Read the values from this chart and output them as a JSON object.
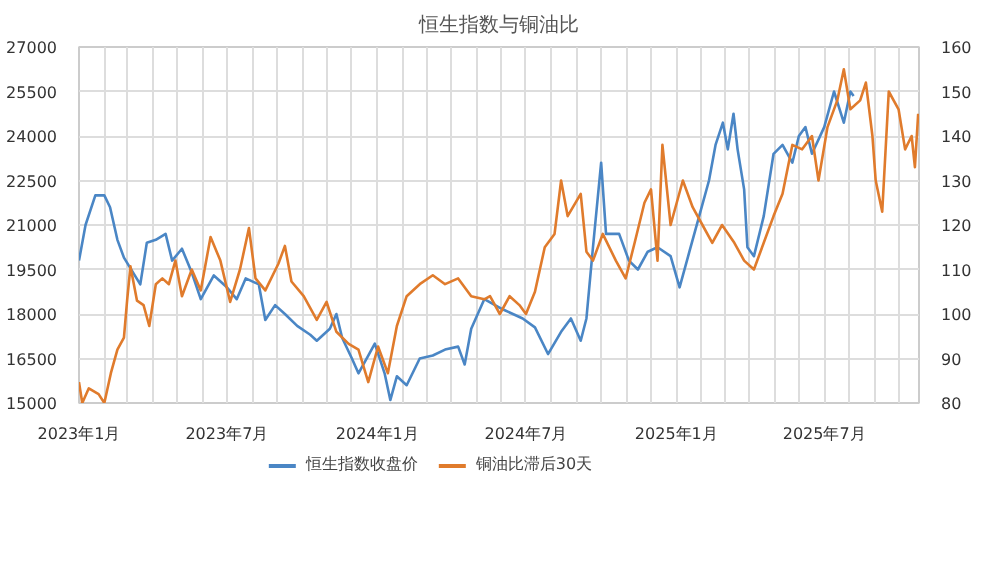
{
  "chart_data": {
    "type": "line",
    "title": "恒生指数与铜油比",
    "xlim": [
      "2023-01-01",
      "2025-10-25"
    ],
    "xticks": [
      {
        "value": "2023-01-01",
        "label": "2023年1月"
      },
      {
        "value": "2023-02-01",
        "label": null
      },
      {
        "value": "2023-03-01",
        "label": null
      },
      {
        "value": "2023-04-01",
        "label": null
      },
      {
        "value": "2023-05-01",
        "label": null
      },
      {
        "value": "2023-06-01",
        "label": null
      },
      {
        "value": "2023-07-01",
        "label": "2023年7月"
      },
      {
        "value": "2023-08-01",
        "label": null
      },
      {
        "value": "2023-09-01",
        "label": null
      },
      {
        "value": "2023-10-01",
        "label": null
      },
      {
        "value": "2023-11-01",
        "label": null
      },
      {
        "value": "2023-12-01",
        "label": null
      },
      {
        "value": "2024-01-01",
        "label": "2024年1月"
      },
      {
        "value": "2024-02-01",
        "label": null
      },
      {
        "value": "2024-03-01",
        "label": null
      },
      {
        "value": "2024-04-01",
        "label": null
      },
      {
        "value": "2024-05-01",
        "label": null
      },
      {
        "value": "2024-06-01",
        "label": null
      },
      {
        "value": "2024-07-01",
        "label": "2024年7月"
      },
      {
        "value": "2024-08-01",
        "label": null
      },
      {
        "value": "2024-09-01",
        "label": null
      },
      {
        "value": "2024-10-01",
        "label": null
      },
      {
        "value": "2024-11-01",
        "label": null
      },
      {
        "value": "2024-12-01",
        "label": null
      },
      {
        "value": "2025-01-01",
        "label": "2025年1月"
      },
      {
        "value": "2025-02-01",
        "label": null
      },
      {
        "value": "2025-03-01",
        "label": null
      },
      {
        "value": "2025-04-01",
        "label": null
      },
      {
        "value": "2025-05-01",
        "label": null
      },
      {
        "value": "2025-06-01",
        "label": null
      },
      {
        "value": "2025-07-01",
        "label": "2025年7月"
      },
      {
        "value": "2025-08-01",
        "label": null
      },
      {
        "value": "2025-09-01",
        "label": null
      },
      {
        "value": "2025-10-01",
        "label": null
      }
    ],
    "ylim": [
      15000,
      27000
    ],
    "yticks": [
      15000,
      16500,
      18000,
      19500,
      21000,
      22500,
      24000,
      25500,
      27000
    ],
    "y2lim": [
      80,
      160
    ],
    "y2ticks": [
      80,
      90,
      100,
      110,
      120,
      130,
      140,
      150,
      160
    ],
    "grid": true,
    "legend": "bottom",
    "line_style": "solid",
    "marker": "none",
    "series": [
      {
        "name": "恒生指数收盘价",
        "color": "#4a86c5",
        "x": [
          "2023-01-01",
          "2023-01-09",
          "2023-01-21",
          "2023-02-01",
          "2023-02-08",
          "2023-02-17",
          "2023-02-25",
          "2023-03-17",
          "2023-03-25",
          "2023-04-05",
          "2023-04-17",
          "2023-04-25",
          "2023-05-07",
          "2023-05-19",
          "2023-05-30",
          "2023-06-15",
          "2023-07-01",
          "2023-07-13",
          "2023-07-24",
          "2023-08-09",
          "2023-08-17",
          "2023-08-29",
          "2023-09-10",
          "2023-09-25",
          "2023-10-11",
          "2023-10-19",
          "2023-11-04",
          "2023-11-12",
          "2023-11-19",
          "2023-12-01",
          "2023-12-09",
          "2023-12-21",
          "2023-12-29",
          "2024-01-10",
          "2024-01-17",
          "2024-01-25",
          "2024-02-06",
          "2024-02-22",
          "2024-03-09",
          "2024-03-24",
          "2024-04-09",
          "2024-04-17",
          "2024-04-25",
          "2024-05-11",
          "2024-06-03",
          "2024-06-27",
          "2024-07-12",
          "2024-07-28",
          "2024-08-13",
          "2024-08-25",
          "2024-09-06",
          "2024-09-13",
          "2024-09-21",
          "2024-10-01",
          "2024-10-07",
          "2024-10-23",
          "2024-11-04",
          "2024-11-15",
          "2024-11-27",
          "2024-12-09",
          "2024-12-25",
          "2025-01-05",
          "2025-01-17",
          "2025-01-29",
          "2025-02-10",
          "2025-02-18",
          "2025-02-27",
          "2025-03-05",
          "2025-03-12",
          "2025-03-17",
          "2025-03-25",
          "2025-03-29",
          "2025-04-06",
          "2025-04-18",
          "2025-04-30",
          "2025-05-11",
          "2025-05-23",
          "2025-05-31",
          "2025-06-08",
          "2025-06-16",
          "2025-07-01",
          "2025-07-13",
          "2025-07-25",
          "2025-08-02",
          "2025-08-06"
        ],
        "values": [
          19800,
          21000,
          22000,
          22000,
          21600,
          20500,
          19900,
          19000,
          20400,
          20500,
          20700,
          19800,
          20200,
          19400,
          18500,
          19300,
          18900,
          18500,
          19200,
          19000,
          17800,
          18300,
          18000,
          17600,
          17300,
          17100,
          17500,
          18000,
          17200,
          16500,
          16000,
          16600,
          17000,
          16000,
          15100,
          15900,
          15600,
          16500,
          16600,
          16800,
          16900,
          16300,
          17500,
          18500,
          18150,
          17850,
          17550,
          16650,
          17400,
          17850,
          17100,
          17850,
          20250,
          23100,
          20700,
          20700,
          19800,
          19500,
          20100,
          20250,
          19950,
          18900,
          20100,
          21300,
          22500,
          23700,
          24450,
          23550,
          24750,
          23550,
          22200,
          20250,
          19950,
          21300,
          23400,
          23700,
          23100,
          24000,
          24300,
          23400,
          24300,
          25500,
          24450,
          25500,
          25350
        ]
      },
      {
        "name": "铜油比滞后30天",
        "color": "#e07b2c",
        "axis": "y2",
        "x": [
          "2023-01-01",
          "2023-01-05",
          "2023-01-13",
          "2023-01-25",
          "2023-02-01",
          "2023-02-09",
          "2023-02-17",
          "2023-02-25",
          "2023-03-01",
          "2023-03-05",
          "2023-03-13",
          "2023-03-21",
          "2023-03-28",
          "2023-04-05",
          "2023-04-13",
          "2023-04-21",
          "2023-04-29",
          "2023-05-07",
          "2023-05-19",
          "2023-05-30",
          "2023-06-11",
          "2023-06-23",
          "2023-07-05",
          "2023-07-17",
          "2023-07-28",
          "2023-08-05",
          "2023-08-17",
          "2023-09-02",
          "2023-09-10",
          "2023-09-18",
          "2023-10-03",
          "2023-10-19",
          "2023-10-31",
          "2023-11-12",
          "2023-11-27",
          "2023-12-09",
          "2023-12-21",
          "2024-01-02",
          "2024-01-14",
          "2024-01-25",
          "2024-02-06",
          "2024-02-22",
          "2024-03-09",
          "2024-03-24",
          "2024-04-09",
          "2024-04-25",
          "2024-05-11",
          "2024-05-18",
          "2024-05-30",
          "2024-06-11",
          "2024-06-23",
          "2024-07-01",
          "2024-07-12",
          "2024-07-24",
          "2024-08-05",
          "2024-08-13",
          "2024-08-21",
          "2024-09-06",
          "2024-09-13",
          "2024-09-21",
          "2024-10-03",
          "2024-10-19",
          "2024-10-31",
          "2024-11-11",
          "2024-11-23",
          "2024-12-01",
          "2024-12-09",
          "2024-12-15",
          "2024-12-25",
          "2025-01-09",
          "2025-01-21",
          "2025-02-02",
          "2025-02-14",
          "2025-02-26",
          "2025-03-13",
          "2025-03-25",
          "2025-04-06",
          "2025-04-18",
          "2025-04-30",
          "2025-05-11",
          "2025-05-23",
          "2025-06-04",
          "2025-06-16",
          "2025-06-24",
          "2025-07-05",
          "2025-07-17",
          "2025-07-25",
          "2025-08-02",
          "2025-08-14",
          "2025-08-21",
          "2025-08-29",
          "2025-09-02",
          "2025-09-10",
          "2025-09-18",
          "2025-09-30",
          "2025-10-08",
          "2025-10-16",
          "2025-10-20",
          "2025-10-24"
        ],
        "values": [
          84.7,
          80,
          83.3,
          82,
          80,
          86.7,
          92,
          94.7,
          103.3,
          110.7,
          103,
          102,
          97.3,
          106.7,
          108,
          106.7,
          112,
          104,
          110,
          105.3,
          117.3,
          112,
          102.7,
          110,
          119.3,
          108,
          105.3,
          111.3,
          115.3,
          107.3,
          104,
          98.7,
          102.7,
          96,
          93.3,
          92,
          84.7,
          92.7,
          86.7,
          97.3,
          104,
          106.7,
          108.7,
          106.7,
          108,
          104,
          103.3,
          104,
          100,
          104,
          102,
          100,
          105,
          115,
          118,
          130,
          122,
          127,
          114,
          112,
          118,
          112,
          108,
          116,
          125,
          128,
          112,
          138,
          120,
          130,
          124,
          120,
          116,
          120,
          116,
          112,
          110,
          116,
          122,
          127,
          138,
          137,
          140,
          130,
          142,
          148,
          155,
          146,
          148,
          152,
          140,
          130,
          123,
          150,
          146,
          137,
          140,
          133,
          145
        ]
      }
    ]
  }
}
